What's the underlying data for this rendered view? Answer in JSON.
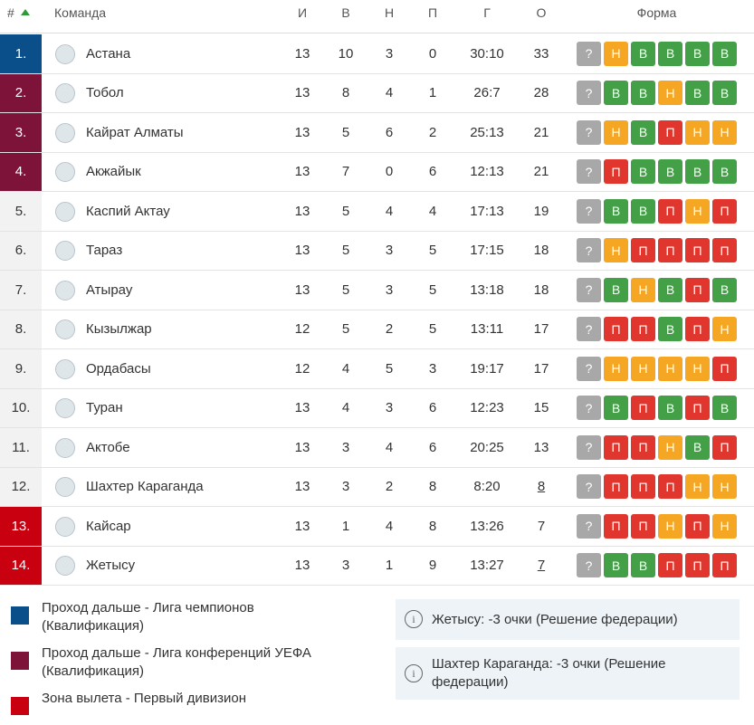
{
  "header": {
    "rank": "#",
    "team": "Команда",
    "p": "И",
    "w": "В",
    "d": "Н",
    "l": "П",
    "goals": "Г",
    "pts": "О",
    "form": "Форма"
  },
  "form_colors": {
    "?": "#a8a8a8",
    "Н": "#f5a623",
    "В": "#43a047",
    "П": "#e0362e"
  },
  "rows": [
    {
      "rank": "1.",
      "team": "Астана",
      "p": 13,
      "w": 10,
      "d": 3,
      "l": 0,
      "goals": "30:10",
      "pts": 33,
      "form": [
        "?",
        "Н",
        "В",
        "В",
        "В",
        "В"
      ],
      "color": "#0b4f8a"
    },
    {
      "rank": "2.",
      "team": "Тобол",
      "p": 13,
      "w": 8,
      "d": 4,
      "l": 1,
      "goals": "26:7",
      "pts": 28,
      "form": [
        "?",
        "В",
        "В",
        "Н",
        "В",
        "В"
      ],
      "color": "#7d1338"
    },
    {
      "rank": "3.",
      "team": "Кайрат Алматы",
      "p": 13,
      "w": 5,
      "d": 6,
      "l": 2,
      "goals": "25:13",
      "pts": 21,
      "form": [
        "?",
        "Н",
        "В",
        "П",
        "Н",
        "Н"
      ],
      "color": "#7d1338"
    },
    {
      "rank": "4.",
      "team": "Акжайык",
      "p": 13,
      "w": 7,
      "d": 0,
      "l": 6,
      "goals": "12:13",
      "pts": 21,
      "form": [
        "?",
        "П",
        "В",
        "В",
        "В",
        "В"
      ],
      "color": "#7d1338"
    },
    {
      "rank": "5.",
      "team": "Каспий Актау",
      "p": 13,
      "w": 5,
      "d": 4,
      "l": 4,
      "goals": "17:13",
      "pts": 19,
      "form": [
        "?",
        "В",
        "В",
        "П",
        "Н",
        "П"
      ],
      "color": "#f2f2f2"
    },
    {
      "rank": "6.",
      "team": "Тараз",
      "p": 13,
      "w": 5,
      "d": 3,
      "l": 5,
      "goals": "17:15",
      "pts": 18,
      "form": [
        "?",
        "Н",
        "П",
        "П",
        "П",
        "П"
      ],
      "color": "#f2f2f2"
    },
    {
      "rank": "7.",
      "team": "Атырау",
      "p": 13,
      "w": 5,
      "d": 3,
      "l": 5,
      "goals": "13:18",
      "pts": 18,
      "form": [
        "?",
        "В",
        "Н",
        "В",
        "П",
        "В"
      ],
      "color": "#f2f2f2"
    },
    {
      "rank": "8.",
      "team": "Кызылжар",
      "p": 12,
      "w": 5,
      "d": 2,
      "l": 5,
      "goals": "13:11",
      "pts": 17,
      "form": [
        "?",
        "П",
        "П",
        "В",
        "П",
        "Н"
      ],
      "color": "#f2f2f2"
    },
    {
      "rank": "9.",
      "team": "Ордабасы",
      "p": 12,
      "w": 4,
      "d": 5,
      "l": 3,
      "goals": "19:17",
      "pts": 17,
      "form": [
        "?",
        "Н",
        "Н",
        "Н",
        "Н",
        "П"
      ],
      "color": "#f2f2f2"
    },
    {
      "rank": "10.",
      "team": "Туран",
      "p": 13,
      "w": 4,
      "d": 3,
      "l": 6,
      "goals": "12:23",
      "pts": 15,
      "form": [
        "?",
        "В",
        "П",
        "В",
        "П",
        "В"
      ],
      "color": "#f2f2f2"
    },
    {
      "rank": "11.",
      "team": "Актобе",
      "p": 13,
      "w": 3,
      "d": 4,
      "l": 6,
      "goals": "20:25",
      "pts": 13,
      "form": [
        "?",
        "П",
        "П",
        "Н",
        "В",
        "П"
      ],
      "color": "#f2f2f2"
    },
    {
      "rank": "12.",
      "team": "Шахтер Караганда",
      "p": 13,
      "w": 3,
      "d": 2,
      "l": 8,
      "goals": "8:20",
      "pts": 8,
      "underline": true,
      "form": [
        "?",
        "П",
        "П",
        "П",
        "Н",
        "Н"
      ],
      "color": "#f2f2f2"
    },
    {
      "rank": "13.",
      "team": "Кайсар",
      "p": 13,
      "w": 1,
      "d": 4,
      "l": 8,
      "goals": "13:26",
      "pts": 7,
      "form": [
        "?",
        "П",
        "П",
        "Н",
        "П",
        "Н"
      ],
      "color": "#c8000f"
    },
    {
      "rank": "14.",
      "team": "Жетысу",
      "p": 13,
      "w": 3,
      "d": 1,
      "l": 9,
      "goals": "13:27",
      "pts": 7,
      "underline": true,
      "form": [
        "?",
        "В",
        "В",
        "П",
        "П",
        "П"
      ],
      "color": "#c8000f"
    }
  ],
  "legend": [
    {
      "text": "Проход дальше - Лига чемпионов (Квалификация)",
      "color": "#0b4f8a"
    },
    {
      "text": "Проход дальше - Лига конференций УЕФА (Квалификация)",
      "color": "#7d1338"
    },
    {
      "text": "Зона вылета - Первый дивизион",
      "color": "#c8000f"
    }
  ],
  "notes": [
    "Жетысу: -3 очки (Решение федерации)",
    "Шахтер Караганда: -3 очки (Решение федерации)"
  ]
}
